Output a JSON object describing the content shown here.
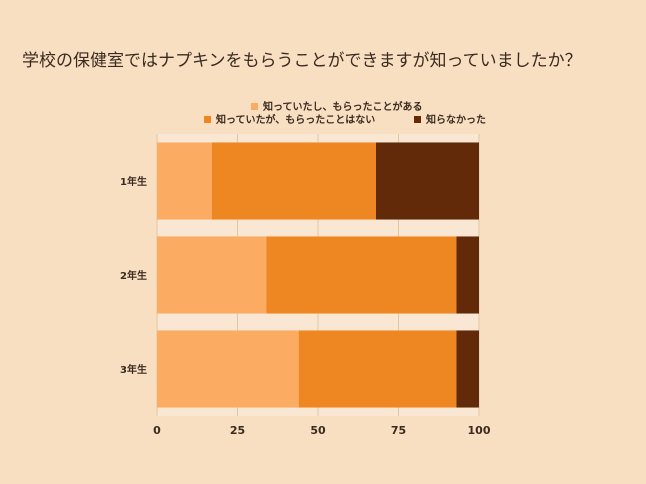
{
  "chart_data": {
    "type": "bar",
    "orientation": "horizontal",
    "stacked": true,
    "title": "学校の保健室ではナプキンをもらうことができますが知っていましたか？",
    "categories": [
      "1年生",
      "2年生",
      "3年生"
    ],
    "series": [
      {
        "name": "知っていたし、もらったことがある",
        "color": "#fbab62",
        "values": [
          17,
          34,
          44
        ]
      },
      {
        "name": "知っていたが、もらったことはない",
        "color": "#ee8622",
        "values": [
          51,
          59,
          49
        ]
      },
      {
        "name": "知らなかった",
        "color": "#632a0a",
        "values": [
          32,
          7,
          7
        ]
      }
    ],
    "xlim": [
      0,
      100
    ],
    "xticks": [
      0,
      25,
      50,
      75,
      100
    ],
    "grid": true,
    "legend_position": "top"
  }
}
